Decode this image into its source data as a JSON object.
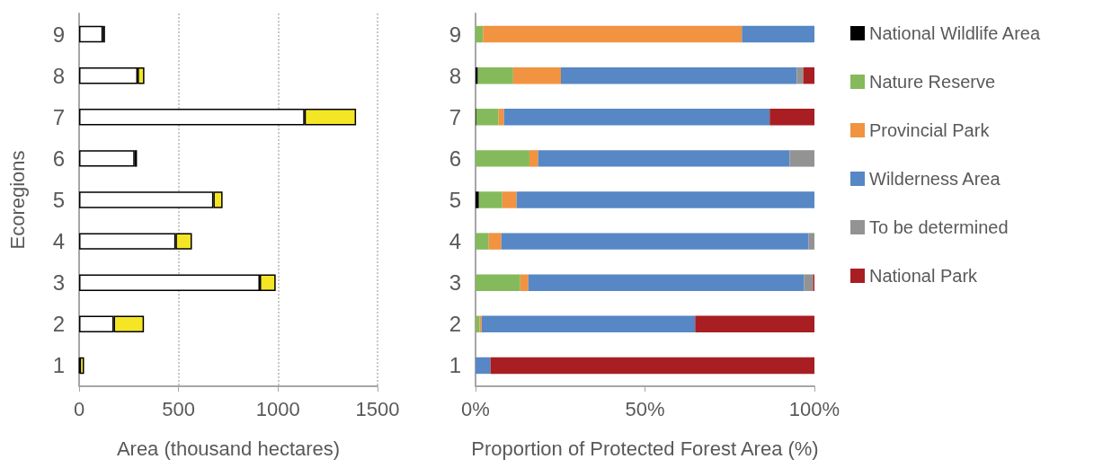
{
  "chart_data": [
    {
      "type": "bar",
      "orientation": "horizontal",
      "stacked": true,
      "categories": [
        "9",
        "8",
        "7",
        "6",
        "5",
        "4",
        "3",
        "2",
        "1"
      ],
      "xlabel": "Area (thousand hectares)",
      "ylabel": "Ecoregions",
      "xlim": [
        0,
        1500
      ],
      "xticks": [
        0,
        500,
        1000,
        1500
      ],
      "grid": "x",
      "series": [
        {
          "color": "#ffffff",
          "values": [
            119,
            294,
            1133,
            279,
            675,
            485,
            908,
            174,
            3
          ]
        },
        {
          "color": "#f5e625",
          "values": [
            11,
            34,
            259,
            12,
            46,
            82,
            80,
            152,
            22
          ]
        }
      ]
    },
    {
      "type": "bar",
      "orientation": "horizontal",
      "stacked": true,
      "categories": [
        "9",
        "8",
        "7",
        "6",
        "5",
        "4",
        "3",
        "2",
        "1"
      ],
      "xlabel": "Proportion of Protected Forest Area (%)",
      "xlim": [
        0,
        100
      ],
      "xticks": [
        {
          "value": 0,
          "label": "0%"
        },
        {
          "value": 50,
          "label": "50%"
        },
        {
          "value": 100,
          "label": "100%"
        }
      ],
      "legend": "right",
      "series": [
        {
          "name": "National Wildlife Area",
          "color": "#000000",
          "values": [
            0,
            0.7,
            0.2,
            0,
            1.0,
            0,
            0,
            0,
            0
          ]
        },
        {
          "name": "Nature Reserve",
          "color": "#84ba5b",
          "values": [
            2.2,
            10.4,
            6.6,
            15.9,
            6.9,
            3.9,
            13.2,
            1.2,
            0
          ]
        },
        {
          "name": "Provincial Park",
          "color": "#f19340",
          "values": [
            76.4,
            14.1,
            1.6,
            2.6,
            4.2,
            3.7,
            2.4,
            0.6,
            0
          ]
        },
        {
          "name": "Wilderness Area",
          "color": "#5787c5",
          "values": [
            21.4,
            69.6,
            78.4,
            74.2,
            87.9,
            90.7,
            81.3,
            63.0,
            4.4
          ]
        },
        {
          "name": "To be determined",
          "color": "#939393",
          "values": [
            0,
            1.9,
            0,
            7.3,
            0,
            1.7,
            2.7,
            0,
            0
          ]
        },
        {
          "name": "National Park",
          "color": "#a81e23",
          "values": [
            0,
            3.3,
            13.2,
            0,
            0,
            0,
            0.4,
            35.2,
            95.6
          ]
        }
      ]
    }
  ]
}
